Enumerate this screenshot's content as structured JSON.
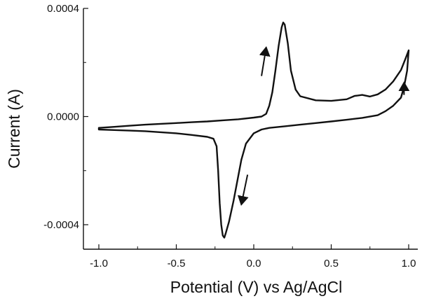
{
  "chart_data": {
    "type": "line",
    "title": "",
    "xlabel": "Potential (V) vs Ag/AgCl",
    "ylabel": "Current (A)",
    "xlim": [
      -1.05,
      1.05
    ],
    "ylim": [
      -0.0005,
      0.0004
    ],
    "x_ticks": [
      -1.0,
      -0.5,
      0.0,
      0.5,
      1.0
    ],
    "x_tick_labels": [
      "-1.0",
      "-0.5",
      "0.0",
      "0.5",
      "1.0"
    ],
    "y_ticks": [
      -0.0004,
      0.0,
      0.0004
    ],
    "y_tick_labels": [
      "-0.0004",
      "0.0000",
      "0.0004"
    ],
    "grid": false,
    "legend": "none",
    "line_color": "#111111",
    "series": [
      {
        "points": [
          [
            -1.0,
            -4.2e-05
          ],
          [
            -0.9,
            -3.8e-05
          ],
          [
            -0.8,
            -3.4e-05
          ],
          [
            -0.7,
            -3e-05
          ],
          [
            -0.6,
            -2.7e-05
          ],
          [
            -0.5,
            -2.4e-05
          ],
          [
            -0.4,
            -2.1e-05
          ],
          [
            -0.3,
            -1.8e-05
          ],
          [
            -0.2,
            -1.4e-05
          ],
          [
            -0.1,
            -1e-05
          ],
          [
            0.0,
            -4e-06
          ],
          [
            0.05,
            0.0
          ],
          [
            0.08,
            1e-05
          ],
          [
            0.1,
            4e-05
          ],
          [
            0.12,
            9e-05
          ],
          [
            0.14,
            0.00017
          ],
          [
            0.16,
            0.00026
          ],
          [
            0.18,
            0.00033
          ],
          [
            0.19,
            0.000348
          ],
          [
            0.2,
            0.00034
          ],
          [
            0.22,
            0.00027
          ],
          [
            0.24,
            0.00017
          ],
          [
            0.27,
            0.0001
          ],
          [
            0.3,
            7.5e-05
          ],
          [
            0.4,
            6e-05
          ],
          [
            0.5,
            5.8e-05
          ],
          [
            0.6,
            6.4e-05
          ],
          [
            0.65,
            7.6e-05
          ],
          [
            0.7,
            8e-05
          ],
          [
            0.75,
            7.4e-05
          ],
          [
            0.8,
            8.2e-05
          ],
          [
            0.85,
            0.0001
          ],
          [
            0.9,
            0.00013
          ],
          [
            0.95,
            0.000172
          ],
          [
            0.98,
            0.000215
          ],
          [
            1.0,
            0.000245
          ],
          [
            0.99,
            0.00017
          ],
          [
            0.97,
            0.00011
          ],
          [
            0.95,
            7e-05
          ],
          [
            0.9,
            4e-05
          ],
          [
            0.85,
            2e-05
          ],
          [
            0.8,
            5e-06
          ],
          [
            0.7,
            -5e-06
          ],
          [
            0.6,
            -1.2e-05
          ],
          [
            0.5,
            -1.8e-05
          ],
          [
            0.4,
            -2.4e-05
          ],
          [
            0.3,
            -3e-05
          ],
          [
            0.2,
            -3.6e-05
          ],
          [
            0.1,
            -4.2e-05
          ],
          [
            0.05,
            -4.8e-05
          ],
          [
            0.0,
            -6.2e-05
          ],
          [
            -0.05,
            -0.0001
          ],
          [
            -0.08,
            -0.00016
          ],
          [
            -0.1,
            -0.00022
          ],
          [
            -0.13,
            -0.00031
          ],
          [
            -0.16,
            -0.00039
          ],
          [
            -0.18,
            -0.00043
          ],
          [
            -0.19,
            -0.000448
          ],
          [
            -0.2,
            -0.00044
          ],
          [
            -0.21,
            -0.0004
          ],
          [
            -0.22,
            -0.00032
          ],
          [
            -0.23,
            -0.0002
          ],
          [
            -0.24,
            -0.00011
          ],
          [
            -0.26,
            -8.2e-05
          ],
          [
            -0.3,
            -7.5e-05
          ],
          [
            -0.4,
            -6.8e-05
          ],
          [
            -0.5,
            -6.2e-05
          ],
          [
            -0.6,
            -5.8e-05
          ],
          [
            -0.7,
            -5.4e-05
          ],
          [
            -0.8,
            -5.2e-05
          ],
          [
            -0.9,
            -5e-05
          ],
          [
            -1.0,
            -4.8e-05
          ],
          [
            -1.0,
            -4.2e-05
          ]
        ]
      }
    ],
    "annotations": {
      "arrows": [
        {
          "from": [
            0.05,
            0.00015
          ],
          "to": [
            0.08,
            0.000255
          ]
        },
        {
          "from": [
            -0.04,
            -0.000215
          ],
          "to": [
            -0.08,
            -0.000325
          ]
        },
        {
          "from": [
            0.97,
            8e-05
          ],
          "to": [
            0.97,
            0.000125
          ]
        }
      ]
    }
  }
}
